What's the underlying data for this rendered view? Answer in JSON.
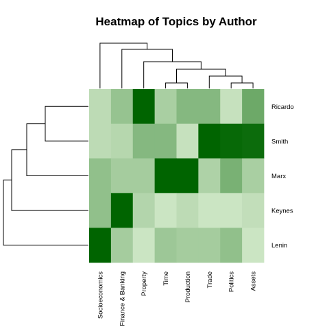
{
  "chart_data": {
    "type": "heatmap",
    "title": "Heatmap of Topics by Author",
    "columns": [
      "Socioeconomics",
      "Finance & Banking",
      "Property",
      "Time",
      "Production",
      "Trade",
      "Politics",
      "Assets"
    ],
    "rows": [
      "Ricardo",
      "Smith",
      "Marx",
      "Keynes",
      "Lenin"
    ],
    "values": [
      [
        0.22,
        0.38,
        1.0,
        0.3,
        0.45,
        0.45,
        0.18,
        0.55
      ],
      [
        0.22,
        0.25,
        0.45,
        0.45,
        0.18,
        1.0,
        0.97,
        0.95
      ],
      [
        0.4,
        0.32,
        0.32,
        1.0,
        1.0,
        0.28,
        0.5,
        0.3
      ],
      [
        0.4,
        1.0,
        0.26,
        0.16,
        0.22,
        0.16,
        0.16,
        0.2
      ],
      [
        1.0,
        0.32,
        0.16,
        0.35,
        0.32,
        0.32,
        0.4,
        0.16
      ]
    ],
    "color_scale": {
      "low": "#f2fde8",
      "high": "#006400"
    },
    "legend": "none"
  }
}
